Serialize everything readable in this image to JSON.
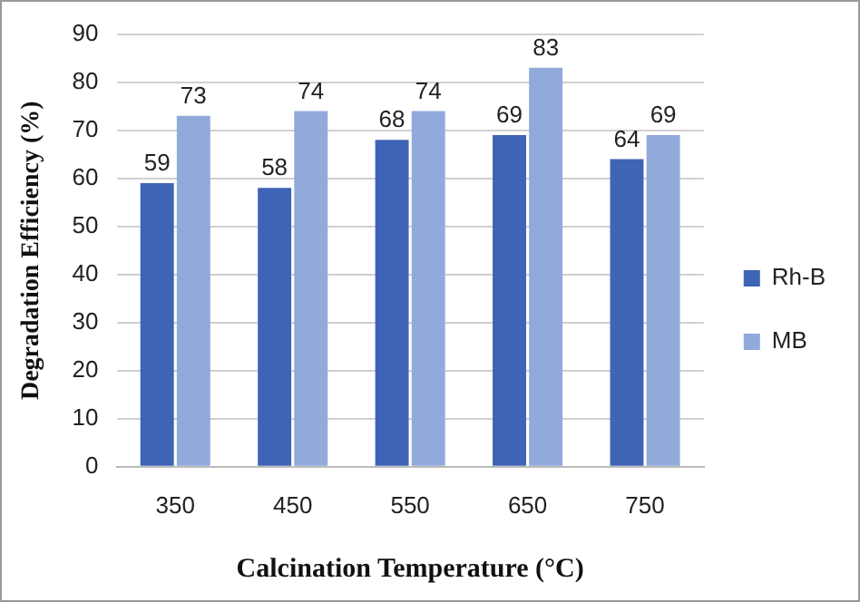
{
  "chart_data": {
    "type": "bar",
    "xlabel": "Calcination Temperature (°C)",
    "ylabel": "Degradation Efficiency (%)",
    "categories": [
      "350",
      "450",
      "550",
      "650",
      "750"
    ],
    "series": [
      {
        "name": "Rh-B",
        "color": "#3f63b5",
        "values": [
          59,
          58,
          68,
          69,
          64
        ]
      },
      {
        "name": "MB",
        "color": "#92a9dc",
        "values": [
          73,
          74,
          74,
          83,
          69
        ]
      }
    ],
    "ylim": [
      0,
      90
    ],
    "yticks": [
      0,
      10,
      20,
      30,
      40,
      50,
      60,
      70,
      80,
      90
    ],
    "grid": "y",
    "legend": "right",
    "data_labels": true
  }
}
